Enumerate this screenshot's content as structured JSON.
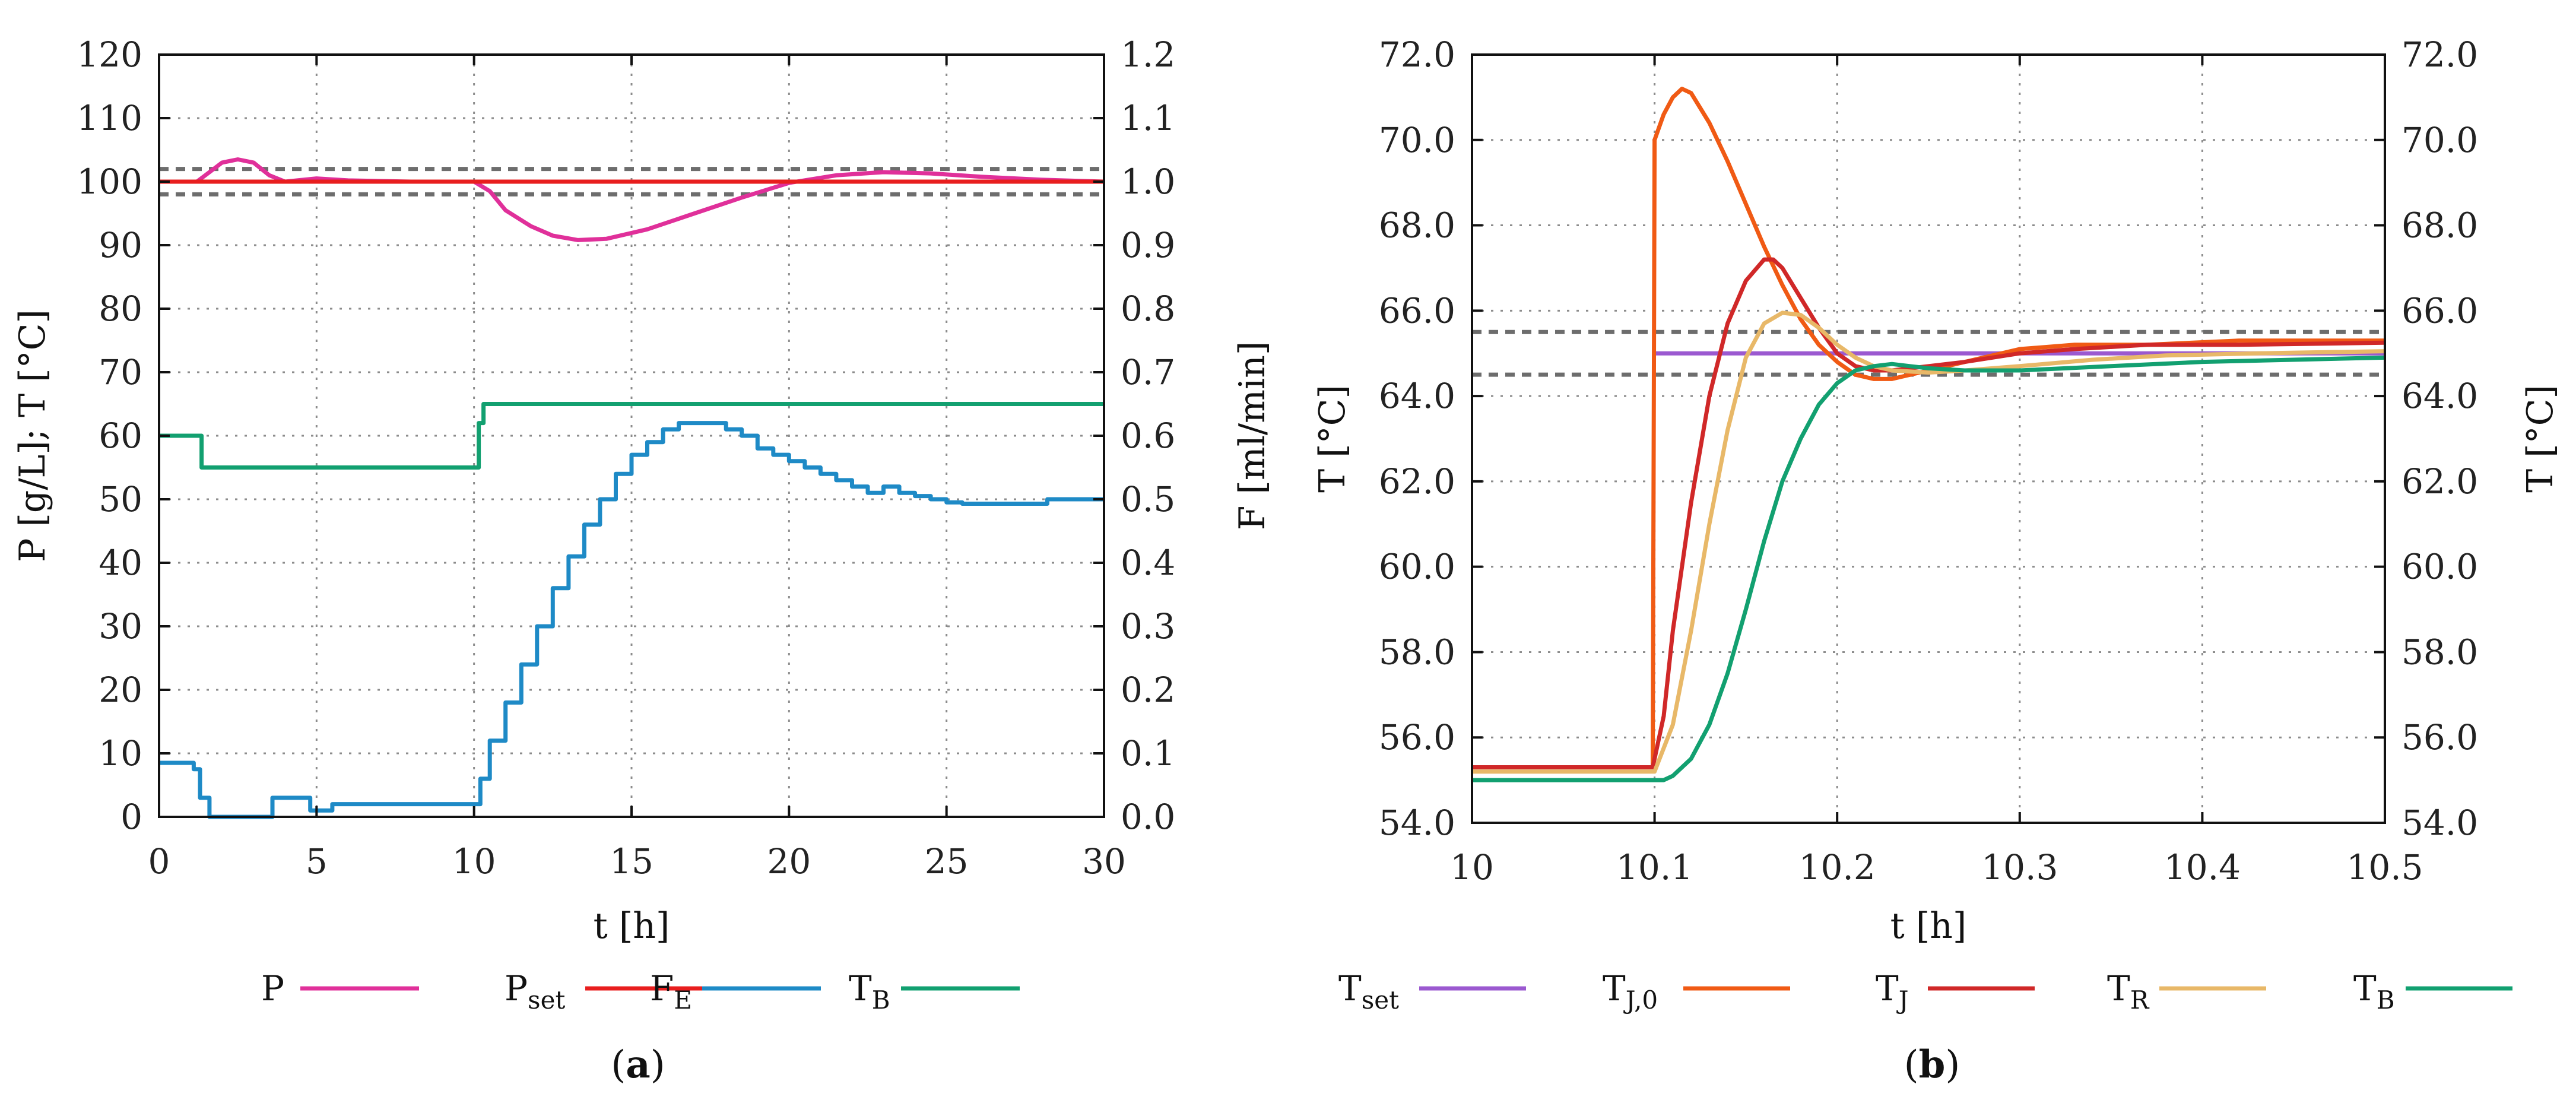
{
  "chart_data": [
    {
      "id": "a",
      "type": "line",
      "caption_letter": "a",
      "xlabel": "t [h]",
      "ylabel_left": "P [g/L]; T [°C]",
      "ylabel_right": "F [ml/min]",
      "xlim": [
        0,
        30
      ],
      "ylim_left": [
        0,
        120
      ],
      "ylim_right": [
        0,
        1.2
      ],
      "xticks": [
        "0",
        "5",
        "10",
        "15",
        "20",
        "25",
        "30"
      ],
      "yticks_left": [
        "0",
        "10",
        "20",
        "30",
        "40",
        "50",
        "60",
        "70",
        "80",
        "90",
        "100",
        "110",
        "120"
      ],
      "yticks_right": [
        "0.0",
        "0.1",
        "0.2",
        "0.3",
        "0.4",
        "0.5",
        "0.6",
        "0.7",
        "0.8",
        "0.9",
        "1.0",
        "1.1",
        "1.2"
      ],
      "grid": true,
      "reference_lines": [
        98,
        102
      ],
      "legend": [
        {
          "label": "P",
          "sub": ""
        },
        {
          "label": "P",
          "sub": "set"
        },
        {
          "label": "F",
          "sub": "E"
        },
        {
          "label": "T",
          "sub": "B"
        }
      ],
      "series": [
        {
          "name": "P",
          "color": "#e0309a",
          "axis": "left",
          "x": [
            0,
            1.2,
            1.6,
            2.0,
            2.5,
            3.0,
            3.5,
            4.0,
            5.0,
            6.0,
            8.0,
            10.0,
            10.5,
            11.0,
            11.8,
            12.5,
            13.3,
            14.2,
            15.5,
            17.0,
            18.5,
            20.0,
            21.5,
            23.0,
            24.5,
            26.0,
            28.0,
            30.0
          ],
          "y": [
            100,
            100,
            101.5,
            103,
            103.5,
            103,
            101,
            100,
            100.5,
            100.2,
            100,
            100,
            98.5,
            95.5,
            93,
            91.5,
            90.8,
            91,
            92.5,
            95,
            97.5,
            99.8,
            101,
            101.5,
            101.3,
            100.8,
            100.3,
            100
          ]
        },
        {
          "name": "Pset",
          "color": "#e81e1e",
          "axis": "left",
          "x": [
            0,
            30
          ],
          "y": [
            100,
            100
          ]
        },
        {
          "name": "FE",
          "color": "#1e8ac6",
          "axis": "right",
          "step": true,
          "x": [
            0,
            0.9,
            1.1,
            1.3,
            1.6,
            3.2,
            3.6,
            4.3,
            4.8,
            5.5,
            6.0,
            10.0,
            10.2,
            10.5,
            11.0,
            11.5,
            12.0,
            12.5,
            13.0,
            13.5,
            14.0,
            14.5,
            15.0,
            15.5,
            16.0,
            16.5,
            17.0,
            17.5,
            18.0,
            18.5,
            19.0,
            19.5,
            20.0,
            20.5,
            21.0,
            21.5,
            22.0,
            22.5,
            23.0,
            23.5,
            24.0,
            24.5,
            25.0,
            25.5,
            28.0,
            28.2,
            30.0
          ],
          "y": [
            0.085,
            0.085,
            0.075,
            0.03,
            0.0,
            0.0,
            0.03,
            0.03,
            0.01,
            0.02,
            0.02,
            0.02,
            0.06,
            0.12,
            0.18,
            0.24,
            0.3,
            0.36,
            0.41,
            0.46,
            0.5,
            0.54,
            0.57,
            0.59,
            0.61,
            0.62,
            0.62,
            0.62,
            0.61,
            0.6,
            0.58,
            0.57,
            0.56,
            0.55,
            0.54,
            0.53,
            0.52,
            0.51,
            0.52,
            0.51,
            0.505,
            0.5,
            0.495,
            0.493,
            0.493,
            0.5,
            0.5
          ]
        },
        {
          "name": "TB",
          "color": "#12a070",
          "axis": "left",
          "step": true,
          "x": [
            0,
            1.2,
            1.35,
            10.0,
            10.15,
            10.3,
            30.0
          ],
          "y": [
            60,
            60,
            55,
            55,
            62,
            65,
            65
          ]
        }
      ]
    },
    {
      "id": "b",
      "type": "line",
      "caption_letter": "b",
      "xlabel": "t [h]",
      "ylabel_left": "T [°C]",
      "ylabel_right": "T [°C]",
      "xlim": [
        10,
        10.5
      ],
      "ylim_left": [
        54,
        72
      ],
      "ylim_right": [
        54,
        72
      ],
      "xticks": [
        "10",
        "10.1",
        "10.2",
        "10.3",
        "10.4",
        "10.5"
      ],
      "yticks_left": [
        "54.0",
        "56.0",
        "58.0",
        "60.0",
        "62.0",
        "64.0",
        "66.0",
        "68.0",
        "70.0",
        "72.0"
      ],
      "yticks_right": [
        "54.0",
        "56.0",
        "58.0",
        "60.0",
        "62.0",
        "64.0",
        "66.0",
        "68.0",
        "70.0",
        "72.0"
      ],
      "grid": true,
      "reference_lines": [
        64.5,
        65.5
      ],
      "legend": [
        {
          "label": "T",
          "sub": "set"
        },
        {
          "label": "T",
          "sub": "J,0"
        },
        {
          "label": "T",
          "sub": "J"
        },
        {
          "label": "T",
          "sub": "R"
        },
        {
          "label": "T",
          "sub": "B"
        }
      ],
      "series": [
        {
          "name": "Tset",
          "color": "#9b59d0",
          "x": [
            10.099,
            10.5
          ],
          "y": [
            65,
            65
          ]
        },
        {
          "name": "TJ0",
          "color": "#f05a14",
          "x": [
            10.0,
            10.099,
            10.1,
            10.105,
            10.11,
            10.115,
            10.12,
            10.13,
            10.14,
            10.15,
            10.16,
            10.17,
            10.18,
            10.19,
            10.2,
            10.21,
            10.22,
            10.23,
            10.24,
            10.26,
            10.28,
            10.3,
            10.33,
            10.37,
            10.42,
            10.5
          ],
          "y": [
            55.3,
            55.3,
            70.0,
            70.6,
            71.0,
            71.2,
            71.1,
            70.4,
            69.5,
            68.5,
            67.5,
            66.6,
            65.8,
            65.2,
            64.8,
            64.5,
            64.4,
            64.4,
            64.5,
            64.7,
            64.9,
            65.1,
            65.2,
            65.2,
            65.3,
            65.3
          ]
        },
        {
          "name": "TJ",
          "color": "#d02828",
          "x": [
            10.0,
            10.099,
            10.105,
            10.11,
            10.12,
            10.13,
            10.14,
            10.15,
            10.16,
            10.165,
            10.17,
            10.18,
            10.19,
            10.2,
            10.21,
            10.22,
            10.23,
            10.25,
            10.27,
            10.3,
            10.33,
            10.37,
            10.42,
            10.5
          ],
          "y": [
            55.3,
            55.3,
            56.5,
            58.5,
            61.5,
            64.0,
            65.7,
            66.7,
            67.2,
            67.2,
            67.0,
            66.3,
            65.6,
            65.0,
            64.7,
            64.6,
            64.6,
            64.7,
            64.8,
            65.0,
            65.1,
            65.2,
            65.2,
            65.25
          ]
        },
        {
          "name": "TR",
          "color": "#e8b868",
          "x": [
            10.0,
            10.1,
            10.11,
            10.12,
            10.13,
            10.14,
            10.15,
            10.16,
            10.17,
            10.18,
            10.19,
            10.2,
            10.21,
            10.22,
            10.23,
            10.25,
            10.27,
            10.3,
            10.34,
            10.38,
            10.43,
            10.5
          ],
          "y": [
            55.2,
            55.2,
            56.3,
            58.5,
            61.0,
            63.2,
            64.9,
            65.7,
            65.95,
            65.9,
            65.6,
            65.2,
            64.9,
            64.7,
            64.6,
            64.55,
            64.6,
            64.7,
            64.85,
            64.95,
            65.0,
            65.05
          ]
        },
        {
          "name": "TB",
          "color": "#12a070",
          "x": [
            10.0,
            10.105,
            10.11,
            10.12,
            10.13,
            10.14,
            10.15,
            10.16,
            10.17,
            10.18,
            10.19,
            10.2,
            10.21,
            10.22,
            10.23,
            10.24,
            10.25,
            10.27,
            10.3,
            10.35,
            10.4,
            10.45,
            10.5
          ],
          "y": [
            55.0,
            55.0,
            55.1,
            55.5,
            56.3,
            57.5,
            59.0,
            60.6,
            62.0,
            63.0,
            63.8,
            64.3,
            64.6,
            64.7,
            64.75,
            64.7,
            64.65,
            64.6,
            64.6,
            64.7,
            64.8,
            64.85,
            64.9
          ]
        }
      ]
    }
  ]
}
